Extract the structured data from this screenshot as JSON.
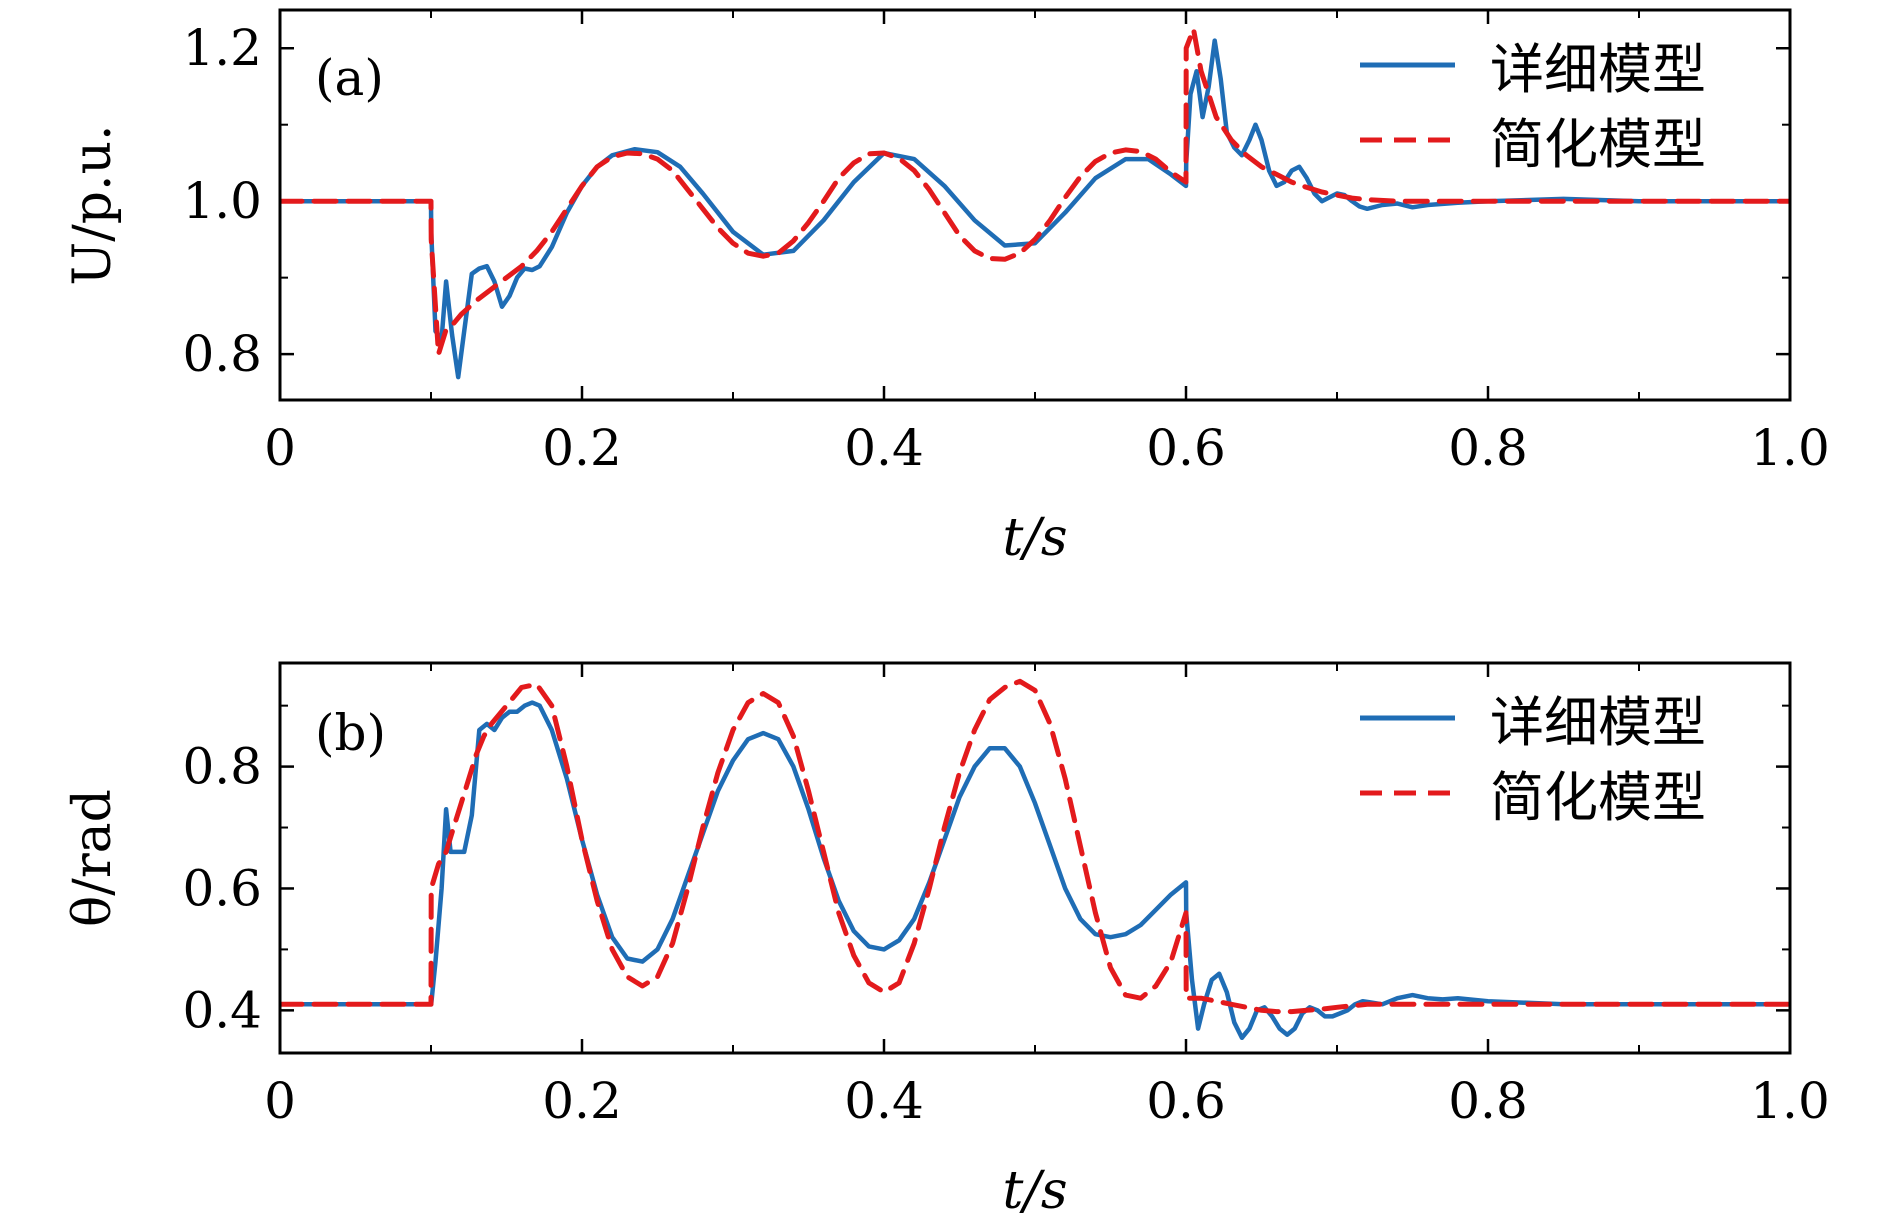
{
  "chart_data": [
    {
      "type": "line",
      "panel_label": "(a)",
      "xlabel": "t/s",
      "ylabel": "U/p.u.",
      "xlim": [
        0,
        1.0
      ],
      "ylim": [
        0.74,
        1.25
      ],
      "xticks": [
        0,
        0.2,
        0.4,
        0.6,
        0.8,
        1.0
      ],
      "xtick_labels": [
        "0",
        "0.2",
        "0.4",
        "0.6",
        "0.8",
        "1.0"
      ],
      "xminor": [
        0.1,
        0.3,
        0.5,
        0.7,
        0.9
      ],
      "yticks": [
        0.8,
        1.0,
        1.2
      ],
      "ytick_labels": [
        "0.8",
        "1.0",
        "1.2"
      ],
      "yminor": [
        0.9,
        1.1
      ],
      "legend_position": "top-right",
      "series": [
        {
          "name": "详细模型",
          "color": "#1f6db5",
          "dash": "solid",
          "x": [
            0,
            0.1,
            0.1001,
            0.103,
            0.107,
            0.11,
            0.114,
            0.118,
            0.122,
            0.127,
            0.132,
            0.137,
            0.142,
            0.147,
            0.152,
            0.157,
            0.162,
            0.167,
            0.172,
            0.18,
            0.19,
            0.2,
            0.21,
            0.22,
            0.235,
            0.25,
            0.265,
            0.28,
            0.3,
            0.32,
            0.34,
            0.36,
            0.38,
            0.4,
            0.42,
            0.44,
            0.46,
            0.48,
            0.5,
            0.52,
            0.54,
            0.56,
            0.575,
            0.59,
            0.6,
            0.6001,
            0.603,
            0.607,
            0.611,
            0.615,
            0.619,
            0.623,
            0.627,
            0.632,
            0.637,
            0.642,
            0.646,
            0.65,
            0.655,
            0.66,
            0.665,
            0.67,
            0.675,
            0.68,
            0.685,
            0.69,
            0.695,
            0.7,
            0.705,
            0.71,
            0.715,
            0.72,
            0.73,
            0.74,
            0.75,
            0.76,
            0.78,
            0.8,
            0.85,
            0.9,
            0.95,
            1.0
          ],
          "y": [
            1.0,
            1.0,
            0.96,
            0.83,
            0.82,
            0.895,
            0.825,
            0.77,
            0.83,
            0.905,
            0.912,
            0.915,
            0.895,
            0.862,
            0.876,
            0.9,
            0.912,
            0.91,
            0.915,
            0.94,
            0.985,
            1.02,
            1.045,
            1.06,
            1.068,
            1.064,
            1.045,
            1.01,
            0.96,
            0.93,
            0.935,
            0.975,
            1.025,
            1.063,
            1.055,
            1.02,
            0.975,
            0.942,
            0.945,
            0.985,
            1.03,
            1.055,
            1.055,
            1.035,
            1.02,
            1.05,
            1.14,
            1.17,
            1.11,
            1.15,
            1.21,
            1.16,
            1.09,
            1.07,
            1.06,
            1.08,
            1.1,
            1.08,
            1.04,
            1.02,
            1.025,
            1.04,
            1.045,
            1.03,
            1.01,
            1.0,
            1.005,
            1.01,
            1.008,
            1.0,
            0.993,
            0.99,
            0.995,
            0.997,
            0.992,
            0.995,
            0.998,
            1.0,
            1.003,
            1.0,
            1.0,
            1.0
          ]
        },
        {
          "name": "简化模型",
          "color": "#e31a1c",
          "dash": "dashed",
          "x": [
            0,
            0.1,
            0.1001,
            0.105,
            0.11,
            0.115,
            0.12,
            0.13,
            0.14,
            0.15,
            0.16,
            0.17,
            0.18,
            0.19,
            0.2,
            0.21,
            0.22,
            0.23,
            0.24,
            0.25,
            0.26,
            0.27,
            0.28,
            0.29,
            0.3,
            0.31,
            0.32,
            0.33,
            0.34,
            0.35,
            0.36,
            0.37,
            0.38,
            0.39,
            0.4,
            0.41,
            0.42,
            0.43,
            0.44,
            0.45,
            0.46,
            0.47,
            0.48,
            0.49,
            0.5,
            0.51,
            0.52,
            0.53,
            0.54,
            0.55,
            0.56,
            0.57,
            0.58,
            0.59,
            0.6,
            0.6001,
            0.605,
            0.61,
            0.62,
            0.63,
            0.64,
            0.65,
            0.66,
            0.67,
            0.68,
            0.69,
            0.7,
            0.71,
            0.72,
            0.74,
            0.76,
            0.78,
            0.8,
            0.85,
            0.9,
            0.95,
            1.0
          ],
          "y": [
            1.0,
            1.0,
            0.95,
            0.8,
            0.832,
            0.84,
            0.852,
            0.87,
            0.885,
            0.9,
            0.915,
            0.935,
            0.96,
            0.99,
            1.02,
            1.045,
            1.058,
            1.063,
            1.062,
            1.055,
            1.04,
            1.015,
            0.99,
            0.965,
            0.945,
            0.932,
            0.928,
            0.932,
            0.948,
            0.972,
            1.0,
            1.03,
            1.05,
            1.062,
            1.063,
            1.056,
            1.04,
            1.015,
            0.985,
            0.955,
            0.935,
            0.925,
            0.924,
            0.932,
            0.95,
            0.975,
            1.005,
            1.032,
            1.052,
            1.063,
            1.067,
            1.065,
            1.055,
            1.038,
            1.025,
            1.2,
            1.225,
            1.17,
            1.11,
            1.08,
            1.06,
            1.045,
            1.035,
            1.025,
            1.018,
            1.012,
            1.008,
            1.004,
            1.002,
            1.0,
            1.0,
            1.0,
            1.0,
            1.0,
            1.0,
            1.0,
            1.0
          ]
        }
      ]
    },
    {
      "type": "line",
      "panel_label": "(b)",
      "xlabel": "t/s",
      "ylabel": "θ/rad",
      "xlim": [
        0,
        1.0
      ],
      "ylim": [
        0.33,
        0.97
      ],
      "xticks": [
        0,
        0.2,
        0.4,
        0.6,
        0.8,
        1.0
      ],
      "xtick_labels": [
        "0",
        "0.2",
        "0.4",
        "0.6",
        "0.8",
        "1.0"
      ],
      "xminor": [
        0.1,
        0.3,
        0.5,
        0.7,
        0.9
      ],
      "yticks": [
        0.4,
        0.6,
        0.8
      ],
      "ytick_labels": [
        "0.4",
        "0.6",
        "0.8"
      ],
      "yminor": [
        0.5,
        0.7,
        0.9
      ],
      "legend_position": "top-right",
      "series": [
        {
          "name": "详细模型",
          "color": "#1f6db5",
          "dash": "solid",
          "x": [
            0,
            0.1,
            0.1001,
            0.103,
            0.107,
            0.11,
            0.113,
            0.117,
            0.122,
            0.127,
            0.132,
            0.137,
            0.142,
            0.147,
            0.152,
            0.157,
            0.162,
            0.167,
            0.172,
            0.18,
            0.19,
            0.2,
            0.21,
            0.22,
            0.23,
            0.24,
            0.25,
            0.26,
            0.27,
            0.28,
            0.29,
            0.3,
            0.31,
            0.32,
            0.33,
            0.34,
            0.35,
            0.36,
            0.37,
            0.38,
            0.39,
            0.4,
            0.41,
            0.42,
            0.43,
            0.44,
            0.45,
            0.46,
            0.47,
            0.48,
            0.49,
            0.5,
            0.51,
            0.52,
            0.53,
            0.54,
            0.55,
            0.56,
            0.57,
            0.58,
            0.59,
            0.6,
            0.6001,
            0.604,
            0.608,
            0.612,
            0.617,
            0.622,
            0.627,
            0.632,
            0.637,
            0.642,
            0.647,
            0.652,
            0.657,
            0.662,
            0.667,
            0.672,
            0.677,
            0.682,
            0.687,
            0.692,
            0.697,
            0.702,
            0.707,
            0.712,
            0.717,
            0.722,
            0.73,
            0.74,
            0.75,
            0.76,
            0.77,
            0.78,
            0.8,
            0.85,
            0.9,
            0.95,
            1.0
          ],
          "y": [
            0.41,
            0.41,
            0.41,
            0.48,
            0.6,
            0.73,
            0.66,
            0.66,
            0.66,
            0.72,
            0.86,
            0.87,
            0.86,
            0.88,
            0.89,
            0.89,
            0.9,
            0.905,
            0.9,
            0.86,
            0.78,
            0.68,
            0.59,
            0.52,
            0.485,
            0.48,
            0.5,
            0.55,
            0.62,
            0.69,
            0.76,
            0.81,
            0.845,
            0.855,
            0.845,
            0.8,
            0.73,
            0.65,
            0.58,
            0.53,
            0.505,
            0.5,
            0.515,
            0.55,
            0.61,
            0.68,
            0.75,
            0.8,
            0.83,
            0.83,
            0.8,
            0.74,
            0.67,
            0.6,
            0.55,
            0.525,
            0.52,
            0.525,
            0.54,
            0.565,
            0.59,
            0.61,
            0.56,
            0.45,
            0.37,
            0.41,
            0.45,
            0.46,
            0.43,
            0.38,
            0.355,
            0.37,
            0.4,
            0.405,
            0.39,
            0.37,
            0.36,
            0.37,
            0.395,
            0.405,
            0.4,
            0.39,
            0.39,
            0.395,
            0.4,
            0.41,
            0.415,
            0.413,
            0.41,
            0.42,
            0.425,
            0.42,
            0.418,
            0.42,
            0.415,
            0.41,
            0.41,
            0.41,
            0.41
          ]
        },
        {
          "name": "简化模型",
          "color": "#e31a1c",
          "dash": "dashed",
          "x": [
            0,
            0.1,
            0.1001,
            0.105,
            0.11,
            0.115,
            0.12,
            0.125,
            0.13,
            0.135,
            0.14,
            0.15,
            0.16,
            0.17,
            0.18,
            0.19,
            0.2,
            0.21,
            0.22,
            0.23,
            0.24,
            0.25,
            0.26,
            0.27,
            0.28,
            0.29,
            0.3,
            0.31,
            0.32,
            0.33,
            0.34,
            0.35,
            0.36,
            0.37,
            0.38,
            0.39,
            0.4,
            0.41,
            0.42,
            0.43,
            0.44,
            0.45,
            0.46,
            0.47,
            0.48,
            0.49,
            0.5,
            0.51,
            0.52,
            0.53,
            0.54,
            0.55,
            0.56,
            0.57,
            0.58,
            0.59,
            0.6,
            0.6001,
            0.61,
            0.62,
            0.63,
            0.64,
            0.65,
            0.66,
            0.67,
            0.68,
            0.69,
            0.7,
            0.72,
            0.74,
            0.76,
            0.8,
            0.85,
            0.9,
            0.95,
            1.0
          ],
          "y": [
            0.41,
            0.41,
            0.6,
            0.64,
            0.66,
            0.7,
            0.74,
            0.78,
            0.82,
            0.85,
            0.87,
            0.9,
            0.93,
            0.935,
            0.9,
            0.8,
            0.68,
            0.58,
            0.5,
            0.455,
            0.44,
            0.455,
            0.51,
            0.6,
            0.7,
            0.79,
            0.86,
            0.905,
            0.92,
            0.905,
            0.85,
            0.76,
            0.66,
            0.56,
            0.49,
            0.445,
            0.43,
            0.445,
            0.51,
            0.6,
            0.7,
            0.79,
            0.86,
            0.91,
            0.93,
            0.94,
            0.925,
            0.87,
            0.78,
            0.67,
            0.56,
            0.47,
            0.425,
            0.42,
            0.44,
            0.48,
            0.56,
            0.42,
            0.42,
            0.415,
            0.41,
            0.405,
            0.4,
            0.398,
            0.398,
            0.4,
            0.402,
            0.405,
            0.41,
            0.41,
            0.41,
            0.41,
            0.41,
            0.41,
            0.41,
            0.41
          ]
        }
      ]
    }
  ]
}
